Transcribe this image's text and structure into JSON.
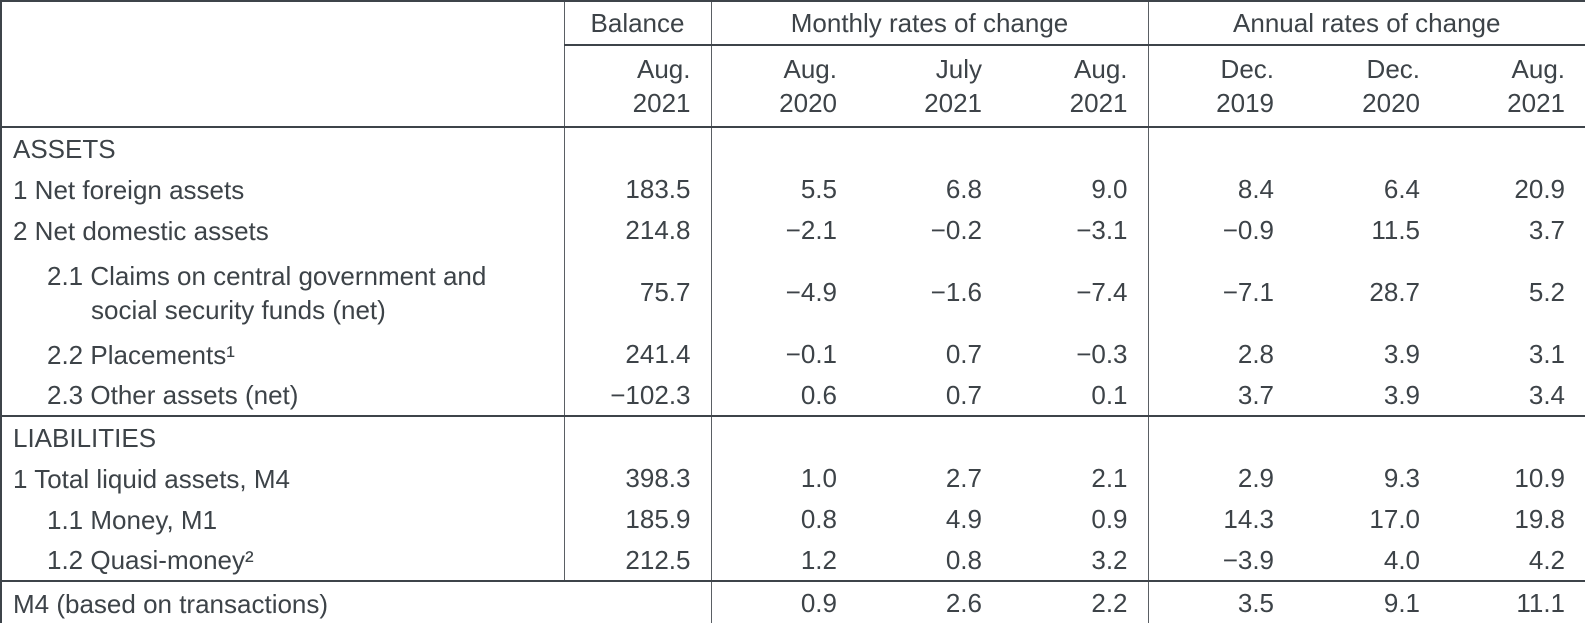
{
  "header": {
    "balance_group": "Balance",
    "monthly_group": "Monthly rates of change",
    "annual_group": "Annual rates of change",
    "cols": [
      {
        "m": "Aug.",
        "y": "2021"
      },
      {
        "m": "Aug.",
        "y": "2020"
      },
      {
        "m": "July",
        "y": "2021"
      },
      {
        "m": "Aug.",
        "y": "2021"
      },
      {
        "m": "Dec.",
        "y": "2019"
      },
      {
        "m": "Dec.",
        "y": "2020"
      },
      {
        "m": "Aug.",
        "y": "2021"
      }
    ]
  },
  "rows": [
    {
      "type": "section",
      "label": "ASSETS",
      "balance": "",
      "vals": [
        "",
        "",
        "",
        "",
        "",
        ""
      ]
    },
    {
      "type": "item",
      "indent": 0,
      "label": "1 Net foreign assets",
      "balance": "183.5",
      "vals": [
        "5.5",
        "6.8",
        "9.0",
        "8.4",
        "6.4",
        "20.9"
      ]
    },
    {
      "type": "item",
      "indent": 0,
      "label": "2 Net domestic assets",
      "balance": "214.8",
      "vals": [
        "−2.1",
        "−0.2",
        "−3.1",
        "−0.9",
        "11.5",
        "3.7"
      ]
    },
    {
      "type": "item",
      "indent": 1,
      "label": "2.1 Claims on central government and",
      "label2": "social security funds (net)",
      "balance": "75.7",
      "vals": [
        "−4.9",
        "−1.6",
        "−7.4",
        "−7.1",
        "28.7",
        "5.2"
      ]
    },
    {
      "type": "item",
      "indent": 1,
      "label": "2.2 Placements¹",
      "balance": "241.4",
      "vals": [
        "−0.1",
        "0.7",
        "−0.3",
        "2.8",
        "3.9",
        "3.1"
      ]
    },
    {
      "type": "item",
      "indent": 1,
      "label": "2.3 Other assets (net)",
      "balance": "−102.3",
      "vals": [
        "0.6",
        "0.7",
        "0.1",
        "3.7",
        "3.9",
        "3.4"
      ]
    },
    {
      "type": "section",
      "label": "LIABILITIES",
      "rule_above": true,
      "balance": "",
      "vals": [
        "",
        "",
        "",
        "",
        "",
        ""
      ]
    },
    {
      "type": "item",
      "indent": 0,
      "label": "1 Total liquid assets, M4",
      "balance": "398.3",
      "vals": [
        "1.0",
        "2.7",
        "2.1",
        "2.9",
        "9.3",
        "10.9"
      ]
    },
    {
      "type": "item",
      "indent": 1,
      "label": "1.1 Money, M1",
      "balance": "185.9",
      "vals": [
        "0.8",
        "4.9",
        "0.9",
        "14.3",
        "17.0",
        "19.8"
      ]
    },
    {
      "type": "item",
      "indent": 1,
      "label": "1.2 Quasi-money²",
      "balance": "212.5",
      "vals": [
        "1.2",
        "0.8",
        "3.2",
        "−3.9",
        "4.0",
        "4.2"
      ]
    },
    {
      "type": "footer",
      "label": "M4 (based on transactions)",
      "rule_above": true,
      "vals": [
        "0.9",
        "2.6",
        "2.2",
        "3.5",
        "9.1",
        "11.1"
      ]
    }
  ],
  "colors": {
    "text": "#3d4348",
    "rule": "#3e444a"
  }
}
